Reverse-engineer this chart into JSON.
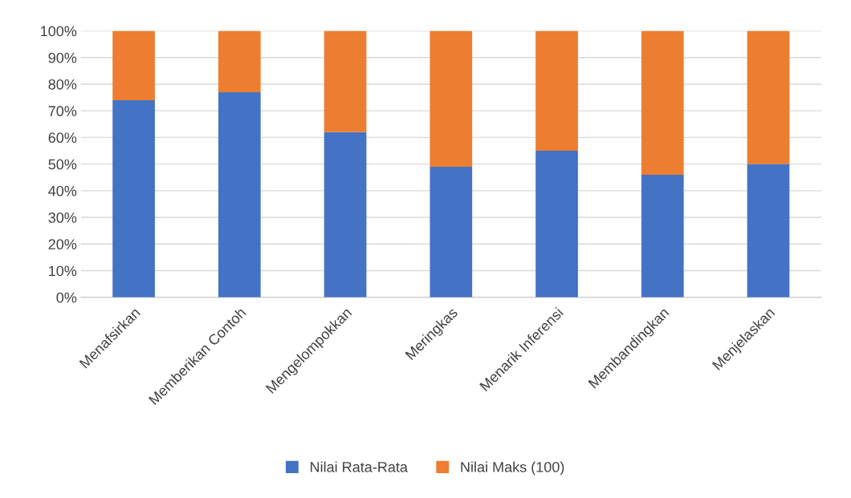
{
  "chart_data": {
    "type": "bar",
    "stacked": true,
    "categories": [
      "Menafsirkan",
      "Memberikan Contoh",
      "Mengelompokkan",
      "Meringkas",
      "Menarik Inferensi",
      "Membandingkan",
      "Menjelaskan"
    ],
    "series": [
      {
        "name": "Nilai Rata-Rata",
        "color": "#4472c4",
        "values": [
          74,
          77,
          62,
          49,
          55,
          46,
          50
        ]
      },
      {
        "name": "Nilai Maks (100)",
        "color": "#ed7d31",
        "values": [
          26,
          23,
          38,
          51,
          45,
          54,
          50
        ]
      }
    ],
    "ylim": [
      0,
      100
    ],
    "yticks": [
      {
        "value": 0,
        "label": "0%"
      },
      {
        "value": 10,
        "label": "10%"
      },
      {
        "value": 20,
        "label": "20%"
      },
      {
        "value": 30,
        "label": "30%"
      },
      {
        "value": 40,
        "label": "40%"
      },
      {
        "value": 50,
        "label": "50%"
      },
      {
        "value": 60,
        "label": "60%"
      },
      {
        "value": 70,
        "label": "70%"
      },
      {
        "value": 80,
        "label": "80%"
      },
      {
        "value": 90,
        "label": "90%"
      },
      {
        "value": 100,
        "label": "100%"
      }
    ],
    "grid": "y",
    "legend": "bottom"
  }
}
